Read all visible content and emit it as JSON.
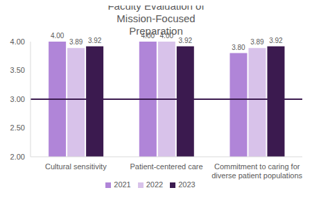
{
  "chart_data": {
    "type": "bar",
    "title": "Faculty Evaluation of Mission-Focused Preparation",
    "categories": [
      "Cultural sensitivity",
      "Patient-centered care",
      "Commitment to caring for diverse patient populations"
    ],
    "series": [
      {
        "name": "2021",
        "color": "#b085d8",
        "values": [
          4.0,
          4.0,
          3.8
        ],
        "value_labels": [
          "4.00",
          "4.00",
          "3.80"
        ]
      },
      {
        "name": "2022",
        "color": "#d8c2ea",
        "values": [
          3.89,
          4.0,
          3.89
        ],
        "value_labels": [
          "3.89",
          "4.00",
          "3.89"
        ]
      },
      {
        "name": "2023",
        "color": "#3b1a4f",
        "values": [
          3.92,
          3.92,
          3.92
        ],
        "value_labels": [
          "3.92",
          "3.92",
          "3.92"
        ]
      }
    ],
    "ylim": [
      2,
      4
    ],
    "yticks": [
      {
        "value": 2,
        "label": "2.00"
      },
      {
        "value": 2.5,
        "label": "2.50"
      },
      {
        "value": 3,
        "label": "3.00"
      },
      {
        "value": 3.5,
        "label": "3.50"
      },
      {
        "value": 4,
        "label": "4.00"
      }
    ],
    "reference_line": 3,
    "grid": false,
    "legend": "bottom",
    "data_labels": true
  }
}
